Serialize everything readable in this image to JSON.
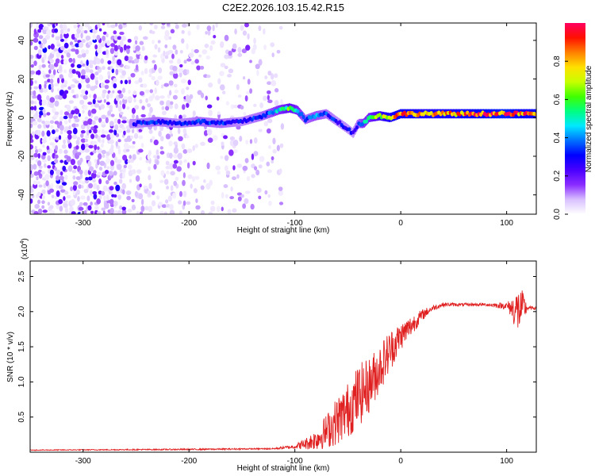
{
  "title": "C2E2.2026.103.15.42.R15",
  "chart_data": [
    {
      "type": "heatmap",
      "panel": "spectrogram",
      "xlabel": "Height of straight line (km)",
      "ylabel": "Frequency (Hz)",
      "xlim": [
        -350,
        128
      ],
      "ylim": [
        -50,
        49
      ],
      "xticks": [
        -300,
        -200,
        -100,
        0,
        100
      ],
      "yticks": [
        -40,
        -20,
        0,
        20,
        40
      ],
      "colorbar": {
        "label": "Normalized spectral amplitude",
        "range": [
          0.0,
          1.0
        ],
        "ticks": [
          0.0,
          0.2,
          0.4,
          0.6,
          0.8
        ],
        "tick_labels": [
          "0.0",
          "0.2",
          "0.4",
          "0.6",
          "0.8"
        ],
        "colors": [
          "#ffffff",
          "#d8c0ff",
          "#8a2cff",
          "#4a00ff",
          "#0000ff",
          "#0070ff",
          "#00e8ff",
          "#00ff80",
          "#40ff00",
          "#c8ff00",
          "#ffe000",
          "#ff8000",
          "#ff1000",
          "#ff0060"
        ]
      },
      "ridge": {
        "x": [
          -250,
          -230,
          -210,
          -190,
          -170,
          -150,
          -130,
          -115,
          -105,
          -98,
          -90,
          -80,
          -70,
          -60,
          -52,
          -45,
          -40,
          -35,
          -30,
          -20,
          -10,
          0,
          20,
          50,
          80,
          100,
          115,
          128
        ],
        "y": [
          -3,
          -2,
          -3,
          -2,
          -3,
          -2,
          1,
          4,
          5,
          4,
          -1,
          1,
          2,
          -2,
          -5,
          -8,
          -3,
          -3,
          0,
          1,
          0,
          2,
          2,
          2,
          2,
          2,
          2,
          2
        ],
        "amplitude": [
          0.3,
          0.35,
          0.3,
          0.35,
          0.35,
          0.3,
          0.35,
          0.45,
          0.6,
          0.5,
          0.35,
          0.4,
          0.35,
          0.3,
          0.3,
          0.28,
          0.35,
          0.45,
          0.5,
          0.7,
          0.8,
          0.85,
          0.8,
          0.82,
          0.9,
          0.95,
          0.85,
          0.88
        ]
      },
      "noise_region_x": [
        -350,
        -110
      ]
    },
    {
      "type": "line",
      "panel": "snr",
      "xlabel": "Height of straight line (km)",
      "ylabel": "SNR (10 * v/v)",
      "multiplier_label": "(x10",
      "multiplier_exponent": "4",
      "multiplier_close": ")",
      "xlim": [
        -350,
        128
      ],
      "ylim": [
        0,
        2.72
      ],
      "xticks": [
        -300,
        -200,
        -100,
        0,
        100
      ],
      "yticks": [
        0.5,
        1.0,
        1.5,
        2.0,
        2.5
      ],
      "ytick_labels": [
        "0.5",
        "1.0",
        "1.5",
        "2.0",
        "2.5"
      ],
      "color": "#e02020",
      "envelope": {
        "x": [
          -350,
          -200,
          -120,
          -100,
          -90,
          -80,
          -70,
          -60,
          -50,
          -40,
          -30,
          -20,
          -10,
          0,
          10,
          20,
          30,
          40,
          60,
          80,
          100,
          105,
          110,
          115,
          120,
          128
        ],
        "y": [
          0.03,
          0.04,
          0.05,
          0.08,
          0.12,
          0.18,
          0.3,
          0.45,
          0.6,
          0.8,
          0.95,
          1.2,
          1.45,
          1.65,
          1.8,
          1.95,
          2.05,
          2.1,
          2.1,
          2.1,
          2.08,
          2.05,
          2.0,
          2.05,
          2.05,
          2.05
        ],
        "noise": [
          0.005,
          0.01,
          0.01,
          0.03,
          0.08,
          0.15,
          0.25,
          0.35,
          0.4,
          0.45,
          0.4,
          0.35,
          0.3,
          0.2,
          0.15,
          0.08,
          0.04,
          0.03,
          0.02,
          0.02,
          0.05,
          0.15,
          0.35,
          0.25,
          0.03,
          0.02
        ]
      }
    }
  ]
}
